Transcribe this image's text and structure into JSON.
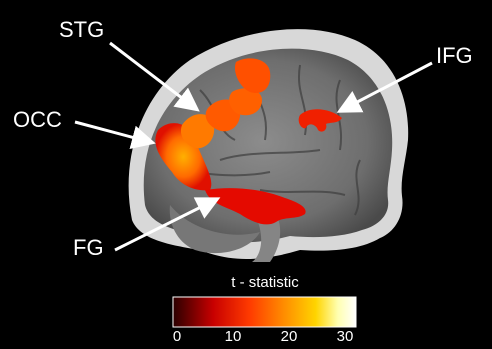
{
  "labels": {
    "stg": "STG",
    "ifg": "IFG",
    "occ": "OCC",
    "fg": "FG"
  },
  "colorbar": {
    "title": "t - statistic",
    "ticks": [
      "0",
      "10",
      "20",
      "30"
    ],
    "range": [
      0,
      33
    ],
    "colors": [
      "#2a0000",
      "#c80000",
      "#ff3b00",
      "#ff8a00",
      "#ffd400",
      "#ffffb0",
      "#ffffff"
    ]
  },
  "background_color": "#000000"
}
